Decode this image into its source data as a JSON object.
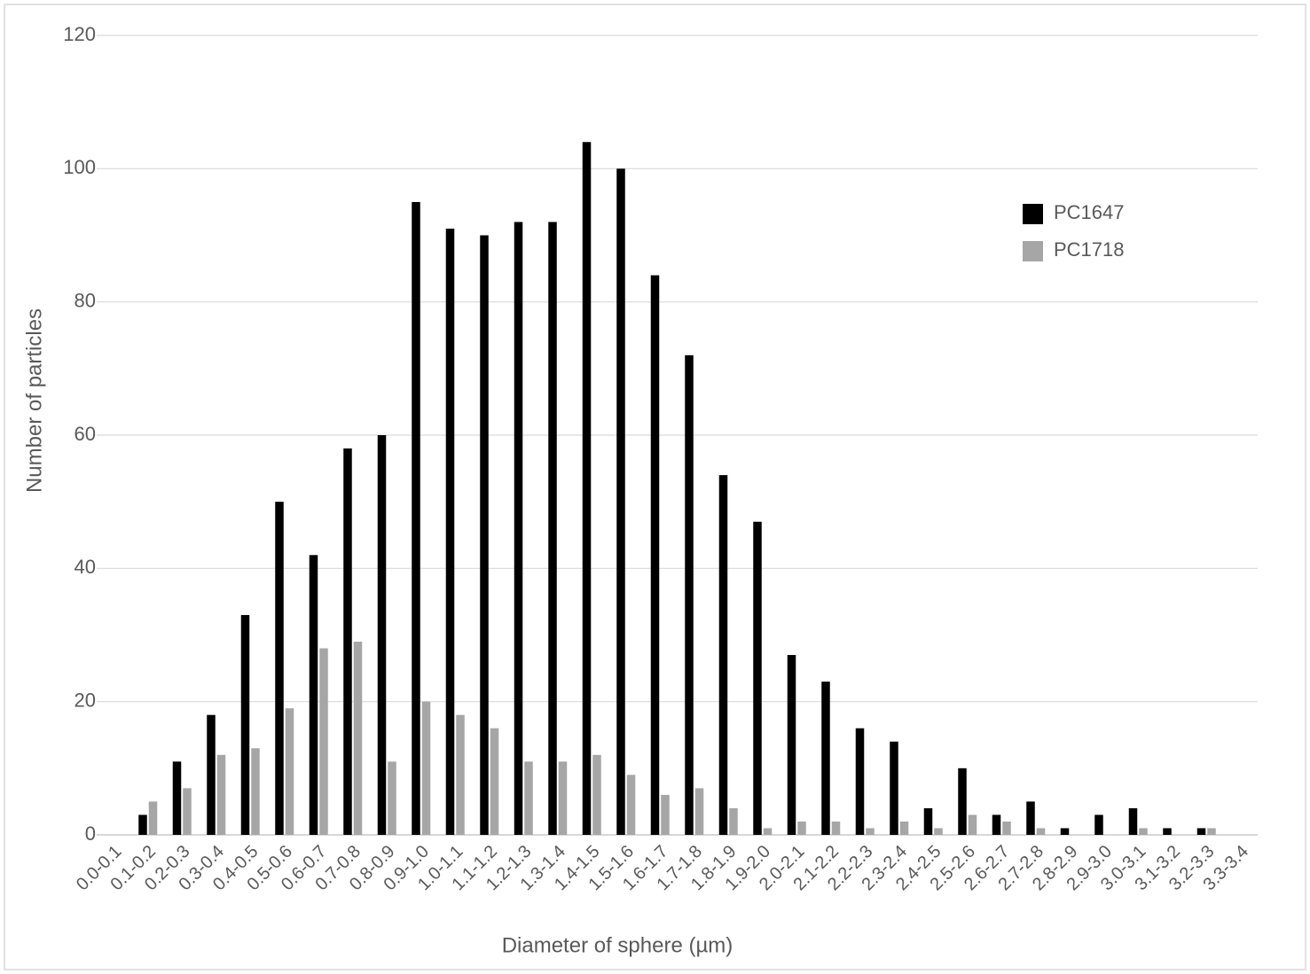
{
  "chart_data": {
    "type": "bar",
    "x_label": "Diameter of sphere (µm)",
    "y_label": "Number of particles",
    "categories": [
      "0.0-0.1",
      "0.1-0.2",
      "0.2-0.3",
      "0.3-0.4",
      "0.4-0.5",
      "0.5-0.6",
      "0.6-0.7",
      "0.7-0.8",
      "0.8-0.9",
      "0.9-1.0",
      "1.0-1.1",
      "1.1-1.2",
      "1.2-1.3",
      "1.3-1.4",
      "1.4-1.5",
      "1.5-1.6",
      "1.6-1.7",
      "1.7-1.8",
      "1.8-1.9",
      "1.9-2.0",
      "2.0-2.1",
      "2.1-2.2",
      "2.2-2.3",
      "2.3-2.4",
      "2.4-2.5",
      "2.5-2.6",
      "2.6-2.7",
      "2.7-2.8",
      "2.8-2.9",
      "2.9-3.0",
      "3.0-3.1",
      "3.1-3.2",
      "3.2-3.3",
      "3.3-3.4"
    ],
    "series": [
      {
        "name": "PC1647",
        "color": "#000000",
        "values": [
          0,
          3,
          11,
          18,
          33,
          50,
          42,
          58,
          60,
          95,
          91,
          90,
          92,
          92,
          104,
          100,
          84,
          72,
          54,
          47,
          27,
          23,
          16,
          14,
          4,
          10,
          3,
          5,
          1,
          3,
          4,
          1,
          1,
          0
        ]
      },
      {
        "name": "PC1718",
        "color": "#a6a6a6",
        "values": [
          0,
          5,
          7,
          12,
          13,
          19,
          28,
          29,
          11,
          20,
          18,
          16,
          11,
          11,
          12,
          9,
          6,
          7,
          4,
          1,
          2,
          2,
          1,
          2,
          1,
          3,
          2,
          1,
          0,
          0,
          1,
          0,
          1,
          0
        ]
      }
    ],
    "ylim": [
      0,
      120
    ],
    "yticks": [
      0,
      20,
      40,
      60,
      80,
      100,
      120
    ],
    "grid": true,
    "legend": "upper-right"
  }
}
